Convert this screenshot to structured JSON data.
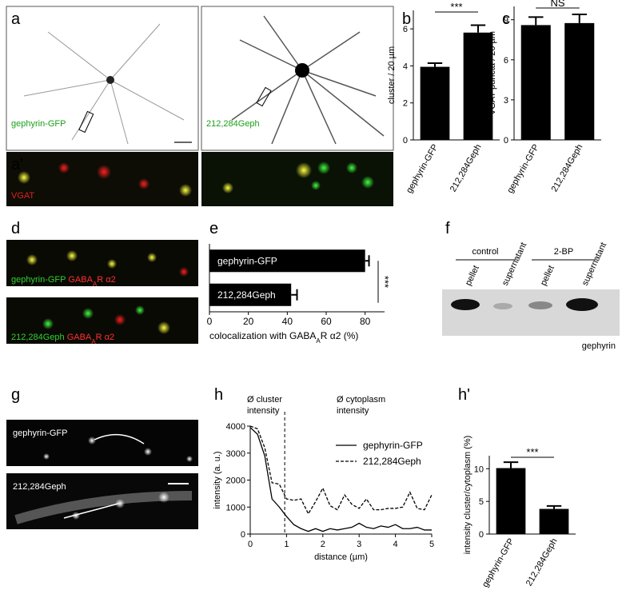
{
  "labels": {
    "panels": [
      "a",
      "a'",
      "b",
      "c",
      "d",
      "e",
      "f",
      "g",
      "h",
      "h'"
    ],
    "a_left": "gephyrin-GFP",
    "a_right": "212,284Geph",
    "a_prime": "VGAT",
    "d_top": [
      "gephyrin-GFP",
      "GABA",
      "A",
      "R α2"
    ],
    "d_bottom": [
      "212,284Geph",
      "GABA",
      "A",
      "R α2"
    ],
    "f_groups": [
      "control",
      "2-BP"
    ],
    "f_lanes": [
      "pellet",
      "supernatant",
      "pellet",
      "supernatant"
    ],
    "f_protein": "gephyrin",
    "g_top": "gephyrin-GFP",
    "g_bottom": "212,284Geph"
  },
  "chart_data": [
    {
      "type": "bar",
      "ylabel": "cluster / 20 µm",
      "categories": [
        "gephyrin-GFP",
        "212,284Geph"
      ],
      "values": [
        3.95,
        5.8
      ],
      "errors": [
        0.2,
        0.4
      ],
      "color": "#000000",
      "ylim": [
        0,
        7
      ],
      "yticks": [
        0,
        2,
        4,
        6
      ],
      "annotation": "***"
    },
    {
      "type": "bar",
      "ylabel": "VGAT puncta / 20 µm",
      "categories": [
        "gephyrin-GFP",
        "212,284Geph"
      ],
      "values": [
        8.6,
        8.75
      ],
      "errors": [
        0.6,
        0.65
      ],
      "color": "#000000",
      "ylim": [
        0,
        10
      ],
      "yticks": [
        0,
        3,
        6,
        9
      ],
      "annotation": "NS"
    },
    {
      "type": "hbar",
      "xlabel": [
        "colocalization with GABA",
        "A",
        "R α2 (%)"
      ],
      "categories": [
        "gephyrin-GFP",
        "212,284Geph"
      ],
      "values": [
        80,
        42
      ],
      "errors": [
        2,
        3
      ],
      "color": "#000000",
      "xlim": [
        0,
        90
      ],
      "xticks": [
        0,
        20,
        40,
        60,
        80
      ],
      "annotation": "***"
    },
    {
      "type": "line",
      "xlabel": "distance (µm)",
      "ylabel": "intensity (a. u.)",
      "x": [
        0,
        0.2,
        0.4,
        0.6,
        0.8,
        1.0,
        1.2,
        1.4,
        1.6,
        1.8,
        2.0,
        2.2,
        2.4,
        2.6,
        2.8,
        3.0,
        3.2,
        3.4,
        3.6,
        3.8,
        4.0,
        4.2,
        4.4,
        4.6,
        4.8,
        5.0
      ],
      "series": [
        {
          "name": "gephyrin-GFP",
          "color": "#000000",
          "style": "solid",
          "values": [
            3950,
            3700,
            2900,
            1300,
            1000,
            650,
            350,
            200,
            100,
            200,
            100,
            200,
            150,
            200,
            250,
            400,
            250,
            200,
            300,
            250,
            350,
            200,
            200,
            250,
            150,
            150
          ]
        },
        {
          "name": "212,284Geph",
          "color": "#000000",
          "style": "dashed",
          "values": [
            4000,
            3900,
            3200,
            1900,
            1850,
            1300,
            1250,
            1300,
            750,
            1200,
            1700,
            1050,
            900,
            1450,
            1100,
            950,
            1300,
            900,
            900,
            950,
            950,
            1000,
            1550,
            950,
            900,
            1450
          ]
        }
      ],
      "xlim": [
        0,
        5
      ],
      "xticks": [
        0,
        1,
        2,
        3,
        4,
        5
      ],
      "ylim": [
        0,
        4000
      ],
      "yticks": [
        0,
        1000,
        2000,
        3000,
        4000
      ],
      "vline": 0.95,
      "annotations": [
        [
          "Ø cluster",
          "intensity"
        ],
        [
          "Ø cytoplasm",
          "intensity"
        ]
      ],
      "legend": "right"
    },
    {
      "type": "bar",
      "ylabel": "intensity cluster/cytoplasm (%)",
      "categories": [
        "gephyrin-GFP",
        "212,284Geph"
      ],
      "values": [
        10.1,
        3.85
      ],
      "errors": [
        0.9,
        0.45
      ],
      "color": "#000000",
      "ylim": [
        0,
        12
      ],
      "yticks": [
        0,
        5,
        10
      ],
      "annotation": "***"
    }
  ]
}
